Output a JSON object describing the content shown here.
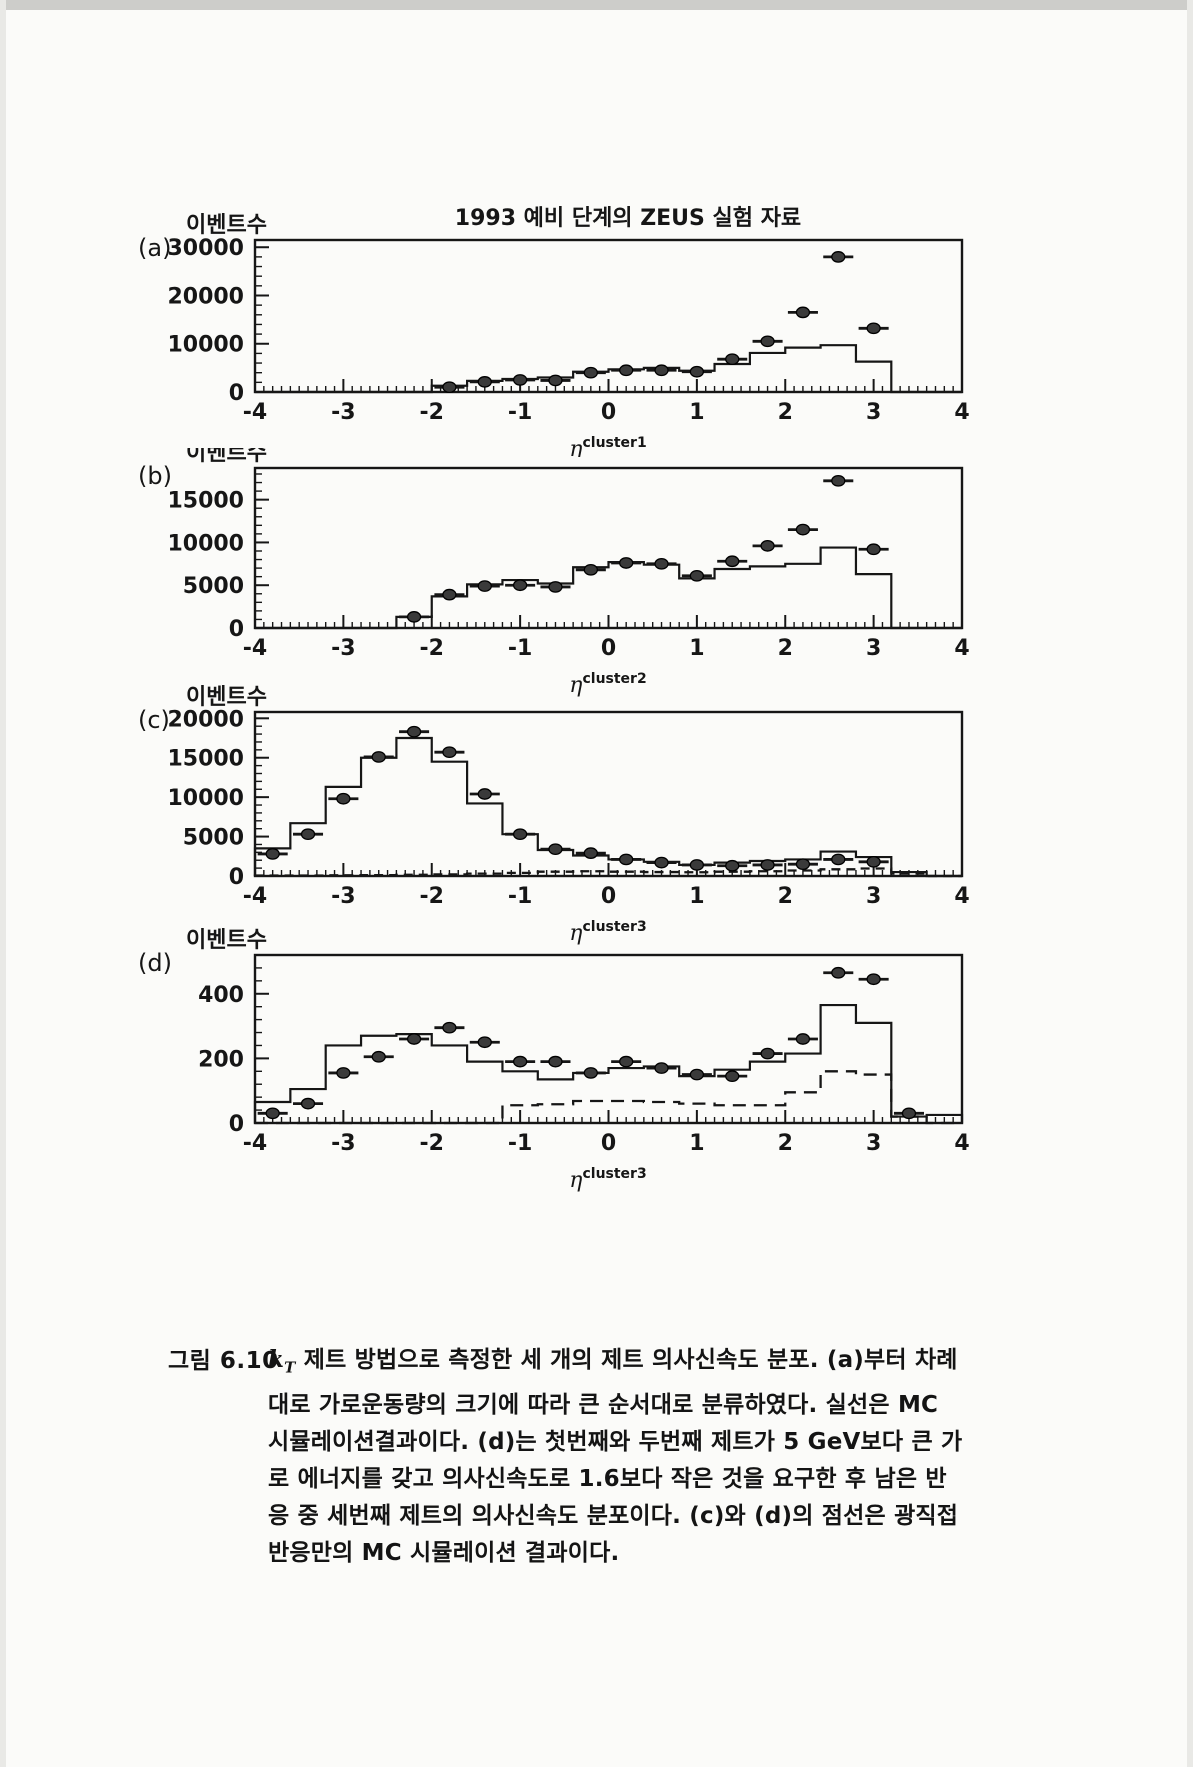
{
  "figure": {
    "title": "1993 예비 단계의 ZEUS 실험 자료",
    "y_axis_label": "이벤트수",
    "eta_symbol": "η"
  },
  "caption": {
    "prefix": "그림 6.10",
    "kt_base": "k",
    "kt_sub": "T",
    "line1_rest": " 제트 방법으로 측정한 세 개의 제트 의사신속도 분포. (a)부터 차례",
    "lines": [
      "대로 가로운동량의 크기에 따라 큰 순서대로 분류하였다. 실선은 MC",
      "시뮬레이션결과이다. (d)는 첫번째와 두번째 제트가 5 GeV보다 큰 가",
      "로 에너지를 갖고 의사신속도로 1.6보다 작은 것을 요구한 후 남은 반",
      "응 중 세번째 제트의 의사신속도 분포이다. (c)와 (d)의 점선은 광직접",
      "반응만의 MC 시뮬레이션 결과이다."
    ]
  },
  "chart_data": [
    {
      "id": "a",
      "type": "bar",
      "subtype": "histogram-with-data-points",
      "panel_letter": "(a)",
      "title": "1993 예비 단계의 ZEUS 실험 자료",
      "ylabel": "이벤트수",
      "xlabel_base": "η",
      "xlabel_sup": "cluster1",
      "xlim": [
        -4,
        4
      ],
      "ylim": [
        0,
        31500
      ],
      "x_ticks": [
        -4,
        -3,
        -2,
        -1,
        0,
        1,
        2,
        3,
        4
      ],
      "y_ticks": [
        0,
        10000,
        20000,
        30000
      ],
      "y_minor_step": 2000,
      "bin_start": -4,
      "bin_width": 0.4,
      "mc_solid": [
        0,
        0,
        0,
        0,
        0,
        1300,
        2300,
        2700,
        3000,
        4200,
        4700,
        5000,
        4400,
        5800,
        8100,
        9200,
        9700,
        6300,
        0,
        0
      ],
      "mc_dashed": null,
      "points_x": [
        -1.8,
        -1.4,
        -1.0,
        -0.6,
        -0.2,
        0.2,
        0.6,
        1.0,
        1.4,
        1.8,
        2.2,
        2.6,
        3.0
      ],
      "points_y": [
        1000,
        2100,
        2500,
        2400,
        4000,
        4500,
        4500,
        4200,
        6800,
        10500,
        16500,
        28000,
        13200
      ]
    },
    {
      "id": "b",
      "type": "bar",
      "subtype": "histogram-with-data-points",
      "panel_letter": "(b)",
      "title": "",
      "ylabel": "이벤트수",
      "xlabel_base": "η",
      "xlabel_sup": "cluster2",
      "xlim": [
        -4,
        4
      ],
      "ylim": [
        0,
        18700
      ],
      "x_ticks": [
        -4,
        -3,
        -2,
        -1,
        0,
        1,
        2,
        3,
        4
      ],
      "y_ticks": [
        0,
        5000,
        10000,
        15000
      ],
      "y_minor_step": 1000,
      "bin_start": -4,
      "bin_width": 0.4,
      "mc_solid": [
        0,
        0,
        0,
        0,
        1300,
        3700,
        5100,
        5600,
        5200,
        7100,
        7700,
        7400,
        5800,
        6900,
        7200,
        7500,
        9400,
        6300,
        0,
        0
      ],
      "mc_dashed": null,
      "points_x": [
        -2.2,
        -1.8,
        -1.4,
        -1.0,
        -0.6,
        -0.2,
        0.2,
        0.6,
        1.0,
        1.4,
        1.8,
        2.2,
        2.6,
        3.0
      ],
      "points_y": [
        1300,
        3900,
        4900,
        5000,
        4800,
        6800,
        7600,
        7500,
        6100,
        7800,
        9600,
        11500,
        17200,
        9200
      ]
    },
    {
      "id": "c",
      "type": "bar",
      "subtype": "histogram-with-data-points",
      "panel_letter": "(c)",
      "title": "",
      "ylabel": "이벤트수",
      "xlabel_base": "η",
      "xlabel_sup": "cluster3",
      "xlim": [
        -4,
        4
      ],
      "ylim": [
        0,
        20800
      ],
      "x_ticks": [
        -4,
        -3,
        -2,
        -1,
        0,
        1,
        2,
        3,
        4
      ],
      "y_ticks": [
        0,
        5000,
        10000,
        15000,
        20000
      ],
      "y_minor_step": 1000,
      "bin_start": -4,
      "bin_width": 0.4,
      "mc_solid": [
        3500,
        6700,
        11300,
        15000,
        17500,
        14500,
        9200,
        5300,
        3300,
        2600,
        2100,
        1800,
        1400,
        1700,
        1900,
        2100,
        3100,
        2400,
        500,
        0
      ],
      "mc_dashed": [
        60,
        60,
        90,
        110,
        160,
        210,
        300,
        400,
        550,
        600,
        550,
        500,
        480,
        550,
        600,
        700,
        850,
        950,
        300,
        0
      ],
      "points_x": [
        -3.8,
        -3.4,
        -3.0,
        -2.6,
        -2.2,
        -1.8,
        -1.4,
        -1.0,
        -0.6,
        -0.2,
        0.2,
        0.6,
        1.0,
        1.4,
        1.8,
        2.2,
        2.6,
        3.0
      ],
      "points_y": [
        2800,
        5300,
        9800,
        15100,
        18300,
        15700,
        10400,
        5300,
        3400,
        2900,
        2100,
        1700,
        1400,
        1300,
        1400,
        1500,
        2100,
        1800
      ]
    },
    {
      "id": "d",
      "type": "bar",
      "subtype": "histogram-with-data-points",
      "panel_letter": "(d)",
      "title": "",
      "ylabel": "이벤트수",
      "xlabel_base": "η",
      "xlabel_sup": "cluster3",
      "xlim": [
        -4,
        4
      ],
      "ylim": [
        0,
        520
      ],
      "x_ticks": [
        -4,
        -3,
        -2,
        -1,
        0,
        1,
        2,
        3,
        4
      ],
      "y_ticks": [
        0,
        200,
        400
      ],
      "y_minor_step": 40,
      "bin_start": -4,
      "bin_width": 0.4,
      "mc_solid": [
        65,
        105,
        240,
        270,
        275,
        240,
        190,
        160,
        135,
        155,
        170,
        175,
        145,
        165,
        190,
        215,
        365,
        310,
        20,
        25
      ],
      "mc_dashed": [
        0,
        0,
        0,
        0,
        0,
        0,
        0,
        55,
        58,
        68,
        68,
        65,
        60,
        55,
        55,
        95,
        160,
        150,
        20,
        0
      ],
      "points_x": [
        -3.8,
        -3.4,
        -3.0,
        -2.6,
        -2.2,
        -1.8,
        -1.4,
        -1.0,
        -0.6,
        -0.2,
        0.2,
        0.6,
        1.0,
        1.4,
        1.8,
        2.2,
        2.6,
        3.0,
        3.4
      ],
      "points_y": [
        30,
        60,
        155,
        205,
        260,
        295,
        250,
        190,
        190,
        155,
        190,
        170,
        150,
        145,
        215,
        260,
        465,
        445,
        30
      ]
    }
  ],
  "style": {
    "ink_color": "#161616",
    "point_fill": "#3a3a3a",
    "page_background": "#fbfbf9"
  }
}
